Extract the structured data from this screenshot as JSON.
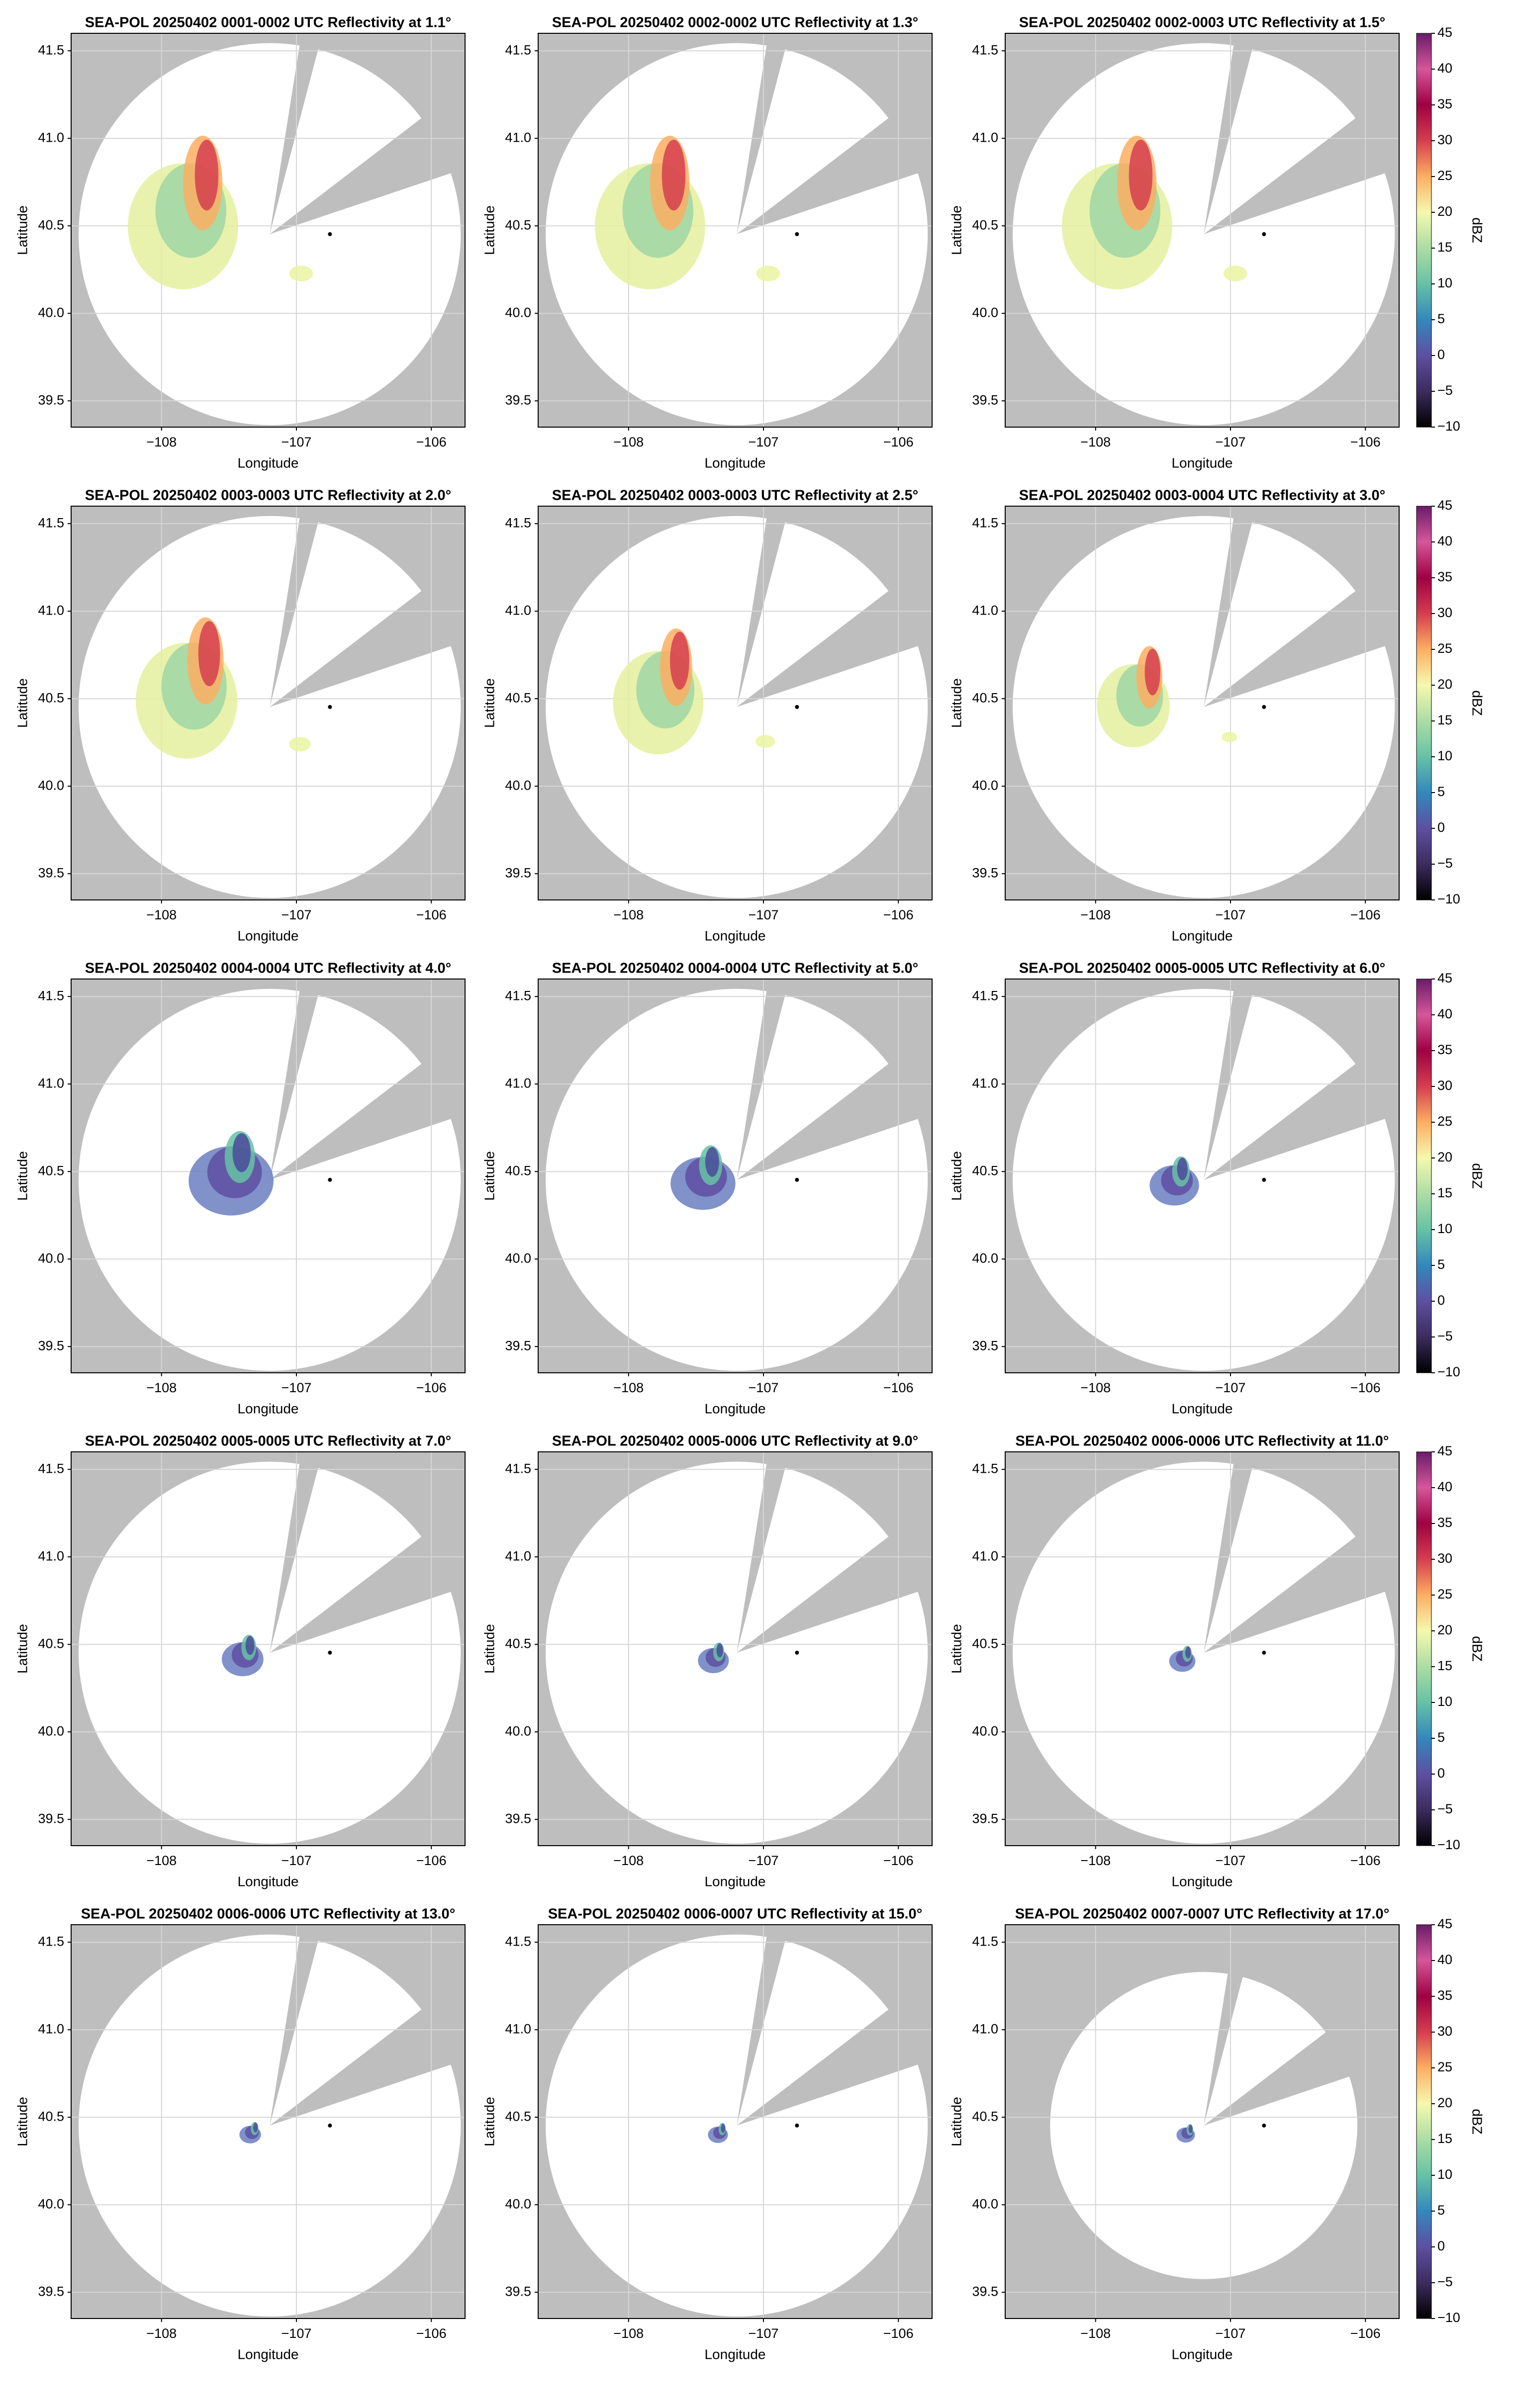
{
  "chart_data": [
    {
      "type": "radar",
      "title": "SEA-POL 20250402 0001-0002 UTC Reflectivity at 1.1°",
      "xlabel": "Longitude",
      "ylabel": "Latitude",
      "xlim": [
        -108.67,
        -105.75
      ],
      "ylim": [
        39.35,
        41.6
      ],
      "xticks": [
        {
          "value": -108,
          "label": "−108"
        },
        {
          "value": -107,
          "label": "−107"
        },
        {
          "value": -106,
          "label": "−106"
        }
      ],
      "yticks": [
        39.5,
        {
          "value": 40,
          "label": "40.0"
        },
        40.5,
        {
          "value": 41,
          "label": "41.0"
        },
        41.5
      ],
      "grid": true
    },
    {
      "type": "radar",
      "title": "SEA-POL 20250402 0002-0002 UTC Reflectivity at 1.3°",
      "xlabel": "Longitude",
      "ylabel": "Latitude",
      "xlim": [
        -108.67,
        -105.75
      ],
      "ylim": [
        39.35,
        41.6
      ],
      "xticks": [
        {
          "value": -108,
          "label": "−108"
        },
        {
          "value": -107,
          "label": "−107"
        },
        {
          "value": -106,
          "label": "−106"
        }
      ],
      "yticks": [
        39.5,
        {
          "value": 40,
          "label": "40.0"
        },
        40.5,
        {
          "value": 41,
          "label": "41.0"
        },
        41.5
      ],
      "grid": true
    },
    {
      "type": "radar",
      "title": "SEA-POL 20250402 0002-0003 UTC Reflectivity at 1.5°",
      "xlabel": "Longitude",
      "ylabel": "Latitude",
      "xlim": [
        -108.67,
        -105.75
      ],
      "ylim": [
        39.35,
        41.6
      ],
      "xticks": [
        {
          "value": -108,
          "label": "−108"
        },
        {
          "value": -107,
          "label": "−107"
        },
        {
          "value": -106,
          "label": "−106"
        }
      ],
      "yticks": [
        39.5,
        {
          "value": 40,
          "label": "40.0"
        },
        40.5,
        {
          "value": 41,
          "label": "41.0"
        },
        41.5
      ],
      "grid": true,
      "colorbar": {
        "label": "dBZ",
        "lim": [
          -10,
          45
        ],
        "ticks": [
          45,
          40,
          35,
          30,
          25,
          20,
          15,
          10,
          5,
          0,
          {
            "value": -5,
            "label": "−5"
          },
          {
            "value": -10,
            "label": "−10"
          }
        ],
        "colors": [
          "#000000",
          "#3b2c5e",
          "#5e4fa2",
          "#3288bd",
          "#66c2a5",
          "#abdda4",
          "#f5f9ae",
          "#fdae61",
          "#d53e4f",
          "#9e0142",
          "#d6569b",
          "#6a1b6a"
        ]
      }
    },
    {
      "type": "radar",
      "title": "SEA-POL 20250402 0003-0003 UTC Reflectivity at 2.0°",
      "xlabel": "Longitude",
      "ylabel": "Latitude",
      "xlim": [
        -108.67,
        -105.75
      ],
      "ylim": [
        39.35,
        41.6
      ],
      "xticks": [
        {
          "value": -108,
          "label": "−108"
        },
        {
          "value": -107,
          "label": "−107"
        },
        {
          "value": -106,
          "label": "−106"
        }
      ],
      "yticks": [
        39.5,
        {
          "value": 40,
          "label": "40.0"
        },
        40.5,
        {
          "value": 41,
          "label": "41.0"
        },
        41.5
      ],
      "grid": true
    },
    {
      "type": "radar",
      "title": "SEA-POL 20250402 0003-0003 UTC Reflectivity at 2.5°",
      "xlabel": "Longitude",
      "ylabel": "Latitude",
      "xlim": [
        -108.67,
        -105.75
      ],
      "ylim": [
        39.35,
        41.6
      ],
      "xticks": [
        {
          "value": -108,
          "label": "−108"
        },
        {
          "value": -107,
          "label": "−107"
        },
        {
          "value": -106,
          "label": "−106"
        }
      ],
      "yticks": [
        39.5,
        {
          "value": 40,
          "label": "40.0"
        },
        40.5,
        {
          "value": 41,
          "label": "41.0"
        },
        41.5
      ],
      "grid": true
    },
    {
      "type": "radar",
      "title": "SEA-POL 20250402 0003-0004 UTC Reflectivity at 3.0°",
      "xlabel": "Longitude",
      "ylabel": "Latitude",
      "xlim": [
        -108.67,
        -105.75
      ],
      "ylim": [
        39.35,
        41.6
      ],
      "xticks": [
        {
          "value": -108,
          "label": "−108"
        },
        {
          "value": -107,
          "label": "−107"
        },
        {
          "value": -106,
          "label": "−106"
        }
      ],
      "yticks": [
        39.5,
        {
          "value": 40,
          "label": "40.0"
        },
        40.5,
        {
          "value": 41,
          "label": "41.0"
        },
        41.5
      ],
      "grid": true,
      "colorbar": {
        "label": "dBZ",
        "lim": [
          -10,
          45
        ],
        "ticks": [
          45,
          40,
          35,
          30,
          25,
          20,
          15,
          10,
          5,
          0,
          {
            "value": -5,
            "label": "−5"
          },
          {
            "value": -10,
            "label": "−10"
          }
        ],
        "colors": [
          "#000000",
          "#3b2c5e",
          "#5e4fa2",
          "#3288bd",
          "#66c2a5",
          "#abdda4",
          "#f5f9ae",
          "#fdae61",
          "#d53e4f",
          "#9e0142",
          "#d6569b",
          "#6a1b6a"
        ]
      }
    },
    {
      "type": "radar",
      "title": "SEA-POL 20250402 0004-0004 UTC Reflectivity at 4.0°",
      "xlabel": "Longitude",
      "ylabel": "Latitude",
      "xlim": [
        -108.67,
        -105.75
      ],
      "ylim": [
        39.35,
        41.6
      ],
      "xticks": [
        {
          "value": -108,
          "label": "−108"
        },
        {
          "value": -107,
          "label": "−107"
        },
        {
          "value": -106,
          "label": "−106"
        }
      ],
      "yticks": [
        39.5,
        {
          "value": 40,
          "label": "40.0"
        },
        40.5,
        {
          "value": 41,
          "label": "41.0"
        },
        41.5
      ],
      "grid": true
    },
    {
      "type": "radar",
      "title": "SEA-POL 20250402 0004-0004 UTC Reflectivity at 5.0°",
      "xlabel": "Longitude",
      "ylabel": "Latitude",
      "xlim": [
        -108.67,
        -105.75
      ],
      "ylim": [
        39.35,
        41.6
      ],
      "xticks": [
        {
          "value": -108,
          "label": "−108"
        },
        {
          "value": -107,
          "label": "−107"
        },
        {
          "value": -106,
          "label": "−106"
        }
      ],
      "yticks": [
        39.5,
        {
          "value": 40,
          "label": "40.0"
        },
        40.5,
        {
          "value": 41,
          "label": "41.0"
        },
        41.5
      ],
      "grid": true
    },
    {
      "type": "radar",
      "title": "SEA-POL 20250402 0005-0005 UTC Reflectivity at 6.0°",
      "xlabel": "Longitude",
      "ylabel": "Latitude",
      "xlim": [
        -108.67,
        -105.75
      ],
      "ylim": [
        39.35,
        41.6
      ],
      "xticks": [
        {
          "value": -108,
          "label": "−108"
        },
        {
          "value": -107,
          "label": "−107"
        },
        {
          "value": -106,
          "label": "−106"
        }
      ],
      "yticks": [
        39.5,
        {
          "value": 40,
          "label": "40.0"
        },
        40.5,
        {
          "value": 41,
          "label": "41.0"
        },
        41.5
      ],
      "grid": true,
      "colorbar": {
        "label": "dBZ",
        "lim": [
          -10,
          45
        ],
        "ticks": [
          45,
          40,
          35,
          30,
          25,
          20,
          15,
          10,
          5,
          0,
          {
            "value": -5,
            "label": "−5"
          },
          {
            "value": -10,
            "label": "−10"
          }
        ],
        "colors": [
          "#000000",
          "#3b2c5e",
          "#5e4fa2",
          "#3288bd",
          "#66c2a5",
          "#abdda4",
          "#f5f9ae",
          "#fdae61",
          "#d53e4f",
          "#9e0142",
          "#d6569b",
          "#6a1b6a"
        ]
      }
    },
    {
      "type": "radar",
      "title": "SEA-POL 20250402 0005-0005 UTC Reflectivity at 7.0°",
      "xlabel": "Longitude",
      "ylabel": "Latitude",
      "xlim": [
        -108.67,
        -105.75
      ],
      "ylim": [
        39.35,
        41.6
      ],
      "xticks": [
        {
          "value": -108,
          "label": "−108"
        },
        {
          "value": -107,
          "label": "−107"
        },
        {
          "value": -106,
          "label": "−106"
        }
      ],
      "yticks": [
        39.5,
        {
          "value": 40,
          "label": "40.0"
        },
        40.5,
        {
          "value": 41,
          "label": "41.0"
        },
        41.5
      ],
      "grid": true
    },
    {
      "type": "radar",
      "title": "SEA-POL 20250402 0005-0006 UTC Reflectivity at 9.0°",
      "xlabel": "Longitude",
      "ylabel": "Latitude",
      "xlim": [
        -108.67,
        -105.75
      ],
      "ylim": [
        39.35,
        41.6
      ],
      "xticks": [
        {
          "value": -108,
          "label": "−108"
        },
        {
          "value": -107,
          "label": "−107"
        },
        {
          "value": -106,
          "label": "−106"
        }
      ],
      "yticks": [
        39.5,
        {
          "value": 40,
          "label": "40.0"
        },
        40.5,
        {
          "value": 41,
          "label": "41.0"
        },
        41.5
      ],
      "grid": true
    },
    {
      "type": "radar",
      "title": "SEA-POL 20250402 0006-0006 UTC Reflectivity at 11.0°",
      "xlabel": "Longitude",
      "ylabel": "Latitude",
      "xlim": [
        -108.67,
        -105.75
      ],
      "ylim": [
        39.35,
        41.6
      ],
      "xticks": [
        {
          "value": -108,
          "label": "−108"
        },
        {
          "value": -107,
          "label": "−107"
        },
        {
          "value": -106,
          "label": "−106"
        }
      ],
      "yticks": [
        39.5,
        {
          "value": 40,
          "label": "40.0"
        },
        40.5,
        {
          "value": 41,
          "label": "41.0"
        },
        41.5
      ],
      "grid": true,
      "colorbar": {
        "label": "dBZ",
        "lim": [
          -10,
          45
        ],
        "ticks": [
          45,
          40,
          35,
          30,
          25,
          20,
          15,
          10,
          5,
          0,
          {
            "value": -5,
            "label": "−5"
          },
          {
            "value": -10,
            "label": "−10"
          }
        ],
        "colors": [
          "#000000",
          "#3b2c5e",
          "#5e4fa2",
          "#3288bd",
          "#66c2a5",
          "#abdda4",
          "#f5f9ae",
          "#fdae61",
          "#d53e4f",
          "#9e0142",
          "#d6569b",
          "#6a1b6a"
        ]
      }
    },
    {
      "type": "radar",
      "title": "SEA-POL 20250402 0006-0006 UTC Reflectivity at 13.0°",
      "xlabel": "Longitude",
      "ylabel": "Latitude",
      "xlim": [
        -108.67,
        -105.75
      ],
      "ylim": [
        39.35,
        41.6
      ],
      "xticks": [
        {
          "value": -108,
          "label": "−108"
        },
        {
          "value": -107,
          "label": "−107"
        },
        {
          "value": -106,
          "label": "−106"
        }
      ],
      "yticks": [
        39.5,
        {
          "value": 40,
          "label": "40.0"
        },
        40.5,
        {
          "value": 41,
          "label": "41.0"
        },
        41.5
      ],
      "grid": true
    },
    {
      "type": "radar",
      "title": "SEA-POL 20250402 0006-0007 UTC Reflectivity at 15.0°",
      "xlabel": "Longitude",
      "ylabel": "Latitude",
      "xlim": [
        -108.67,
        -105.75
      ],
      "ylim": [
        39.35,
        41.6
      ],
      "xticks": [
        {
          "value": -108,
          "label": "−108"
        },
        {
          "value": -107,
          "label": "−107"
        },
        {
          "value": -106,
          "label": "−106"
        }
      ],
      "yticks": [
        39.5,
        {
          "value": 40,
          "label": "40.0"
        },
        40.5,
        {
          "value": 41,
          "label": "41.0"
        },
        41.5
      ],
      "grid": true
    },
    {
      "type": "radar",
      "title": "SEA-POL 20250402 0007-0007 UTC Reflectivity at 17.0°",
      "xlabel": "Longitude",
      "ylabel": "Latitude",
      "xlim": [
        -108.67,
        -105.75
      ],
      "ylim": [
        39.35,
        41.6
      ],
      "xticks": [
        {
          "value": -108,
          "label": "−108"
        },
        {
          "value": -107,
          "label": "−107"
        },
        {
          "value": -106,
          "label": "−106"
        }
      ],
      "yticks": [
        39.5,
        {
          "value": 40,
          "label": "40.0"
        },
        40.5,
        {
          "value": 41,
          "label": "41.0"
        },
        41.5
      ],
      "grid": true,
      "colorbar": {
        "label": "dBZ",
        "lim": [
          -10,
          45
        ],
        "ticks": [
          45,
          40,
          35,
          30,
          25,
          20,
          15,
          10,
          5,
          0,
          {
            "value": -5,
            "label": "−5"
          },
          {
            "value": -10,
            "label": "−10"
          }
        ],
        "colors": [
          "#000000",
          "#3b2c5e",
          "#5e4fa2",
          "#3288bd",
          "#66c2a5",
          "#abdda4",
          "#f5f9ae",
          "#fdae61",
          "#d53e4f",
          "#9e0142",
          "#d6569b",
          "#6a1b6a"
        ]
      }
    }
  ]
}
